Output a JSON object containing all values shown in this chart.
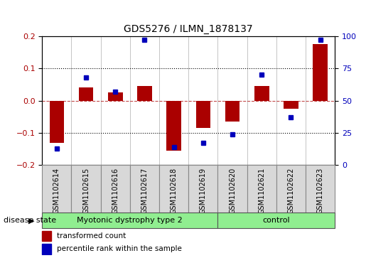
{
  "title": "GDS5276 / ILMN_1878137",
  "samples": [
    "GSM1102614",
    "GSM1102615",
    "GSM1102616",
    "GSM1102617",
    "GSM1102618",
    "GSM1102619",
    "GSM1102620",
    "GSM1102621",
    "GSM1102622",
    "GSM1102623"
  ],
  "red_values": [
    -0.13,
    0.04,
    0.025,
    0.045,
    -0.155,
    -0.085,
    -0.065,
    0.045,
    -0.025,
    0.175
  ],
  "blue_values_pct": [
    13,
    68,
    57,
    97,
    14,
    17,
    24,
    70,
    37,
    97
  ],
  "group_boundary": 6,
  "group1_label": "Myotonic dystrophy type 2",
  "group2_label": "control",
  "group_color": "#90EE90",
  "ylim_left": [
    -0.2,
    0.2
  ],
  "ylim_right": [
    0,
    100
  ],
  "yticks_left": [
    -0.2,
    -0.1,
    0.0,
    0.1,
    0.2
  ],
  "yticks_right": [
    0,
    25,
    50,
    75,
    100
  ],
  "red_color": "#AA0000",
  "blue_color": "#0000BB",
  "cell_color": "#D8D8D8",
  "bar_width": 0.5,
  "marker_size": 5,
  "legend_items": [
    {
      "label": "transformed count",
      "color": "#AA0000"
    },
    {
      "label": "percentile rank within the sample",
      "color": "#0000BB"
    }
  ]
}
